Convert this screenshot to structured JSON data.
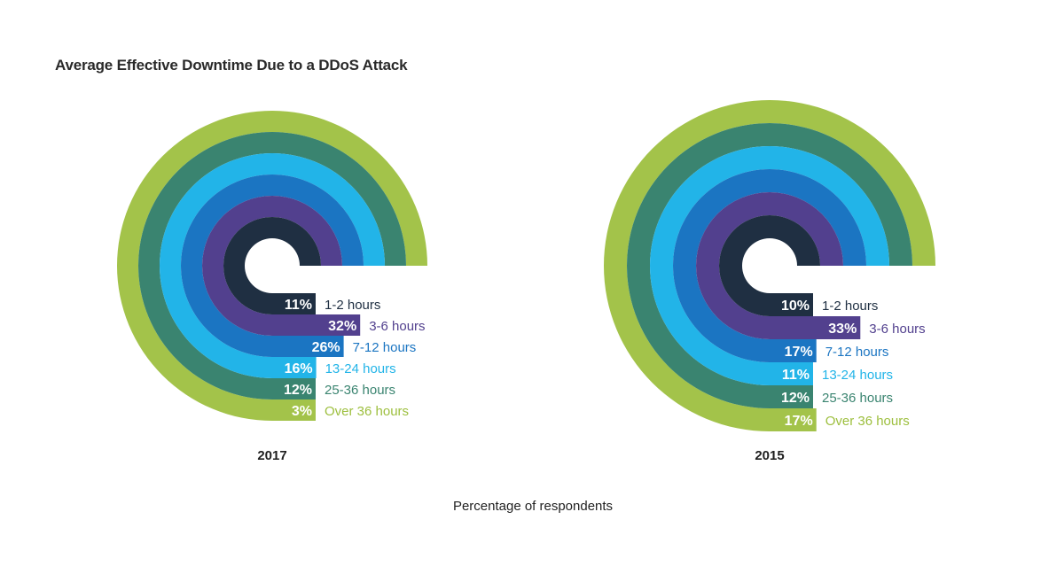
{
  "title": "Average Effective Downtime Due to a DDoS Attack",
  "footnote": "Percentage of respondents",
  "colors": {
    "1-2 hours": "#1f2f42",
    "3-6 hours": "#52408e",
    "7-12 hours": "#1b75c2",
    "13-24 hours": "#22b4e8",
    "25-36 hours": "#3a8470",
    "Over 36 hours": "#a3c34a"
  },
  "label_colors": {
    "1-2 hours": "#1f2f42",
    "3-6 hours": "#52408e",
    "7-12 hours": "#1b75c2",
    "13-24 hours": "#22b4e8",
    "25-36 hours": "#3a8470",
    "Over 36 hours": "#9dbf3e"
  },
  "chart_data": [
    {
      "type": "radial_bar",
      "year": "2017",
      "categories": [
        "1-2 hours",
        "3-6 hours",
        "7-12 hours",
        "13-24 hours",
        "25-36 hours",
        "Over 36 hours"
      ],
      "values": [
        11,
        32,
        26,
        16,
        12,
        3
      ],
      "value_labels": [
        "11%",
        "32%",
        "26%",
        "16%",
        "12%",
        "3%"
      ],
      "unit": "%"
    },
    {
      "type": "radial_bar",
      "year": "2015",
      "categories": [
        "1-2 hours",
        "3-6 hours",
        "7-12 hours",
        "13-24 hours",
        "25-36 hours",
        "Over 36 hours"
      ],
      "values": [
        10,
        33,
        17,
        11,
        12,
        17
      ],
      "value_labels": [
        "10%",
        "33%",
        "17%",
        "11%",
        "12%",
        "17%"
      ],
      "unit": "%"
    }
  ]
}
